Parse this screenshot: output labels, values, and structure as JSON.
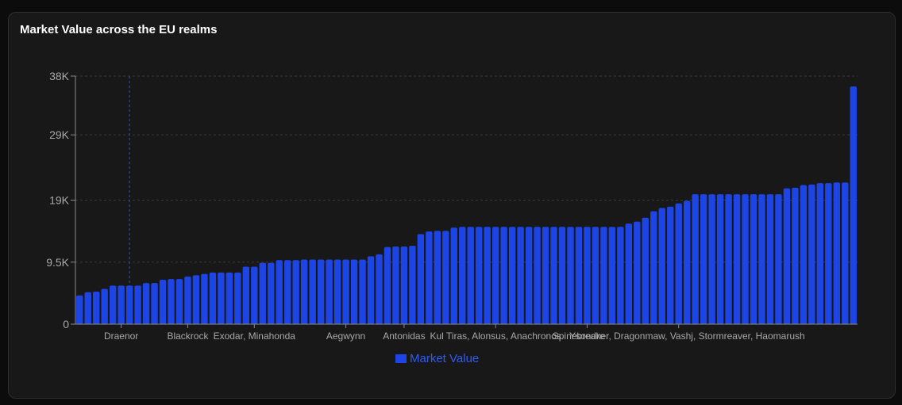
{
  "card": {
    "title": "Market Value across the EU realms"
  },
  "colors": {
    "bar": "#1d45e6",
    "grid": "#3a3a3a",
    "axis": "#8a8a8a",
    "crosshair": "#2f4fd0",
    "legend_text": "#2f5bf0"
  },
  "chart_data": {
    "type": "bar",
    "title": "Market Value across the EU realms",
    "ylim": [
      0,
      38000
    ],
    "y_ticks": [
      0,
      9500,
      19000,
      29000,
      38000
    ],
    "y_tick_labels": [
      "0",
      "9.5K",
      "19K",
      "29K",
      "38K"
    ],
    "grid": true,
    "legend_position": "bottom-center",
    "highlight_index": 6,
    "x_tick_labels": [
      {
        "label": "Draenor",
        "index": 5
      },
      {
        "label": "Blackrock",
        "index": 13
      },
      {
        "label": "Exodar, Minahonda",
        "index": 21
      },
      {
        "label": "Aegwynn",
        "index": 32
      },
      {
        "label": "Antonidas",
        "index": 39
      },
      {
        "label": "Kul Tiras, Alonsus, Anachronos",
        "index": 50
      },
      {
        "label": "Ysondre",
        "index": 61
      },
      {
        "label": "Spinebreaker, Dragonmaw, Vashj, Stormreaver, Haomarush",
        "index": 72
      }
    ],
    "series": [
      {
        "name": "Market Value",
        "values": [
          4400,
          4900,
          5000,
          5400,
          5900,
          5900,
          5900,
          5900,
          6300,
          6300,
          6800,
          6900,
          6900,
          7300,
          7500,
          7700,
          7900,
          7900,
          7900,
          7900,
          8800,
          8800,
          9400,
          9400,
          9800,
          9800,
          9800,
          9900,
          9900,
          9900,
          9900,
          9900,
          9900,
          9900,
          9900,
          10400,
          10700,
          11800,
          11900,
          11900,
          12000,
          13800,
          14200,
          14300,
          14300,
          14800,
          14900,
          14900,
          14900,
          14900,
          14900,
          14900,
          14900,
          14900,
          14900,
          14900,
          14900,
          14900,
          14900,
          14900,
          14900,
          14900,
          14900,
          14900,
          14900,
          14900,
          15400,
          15700,
          16300,
          17300,
          17800,
          18000,
          18500,
          18900,
          19900,
          19900,
          19900,
          19900,
          19900,
          19900,
          19900,
          19900,
          19900,
          19900,
          19900,
          20800,
          20900,
          21300,
          21400,
          21600,
          21600,
          21700,
          21700,
          36400
        ]
      }
    ]
  }
}
